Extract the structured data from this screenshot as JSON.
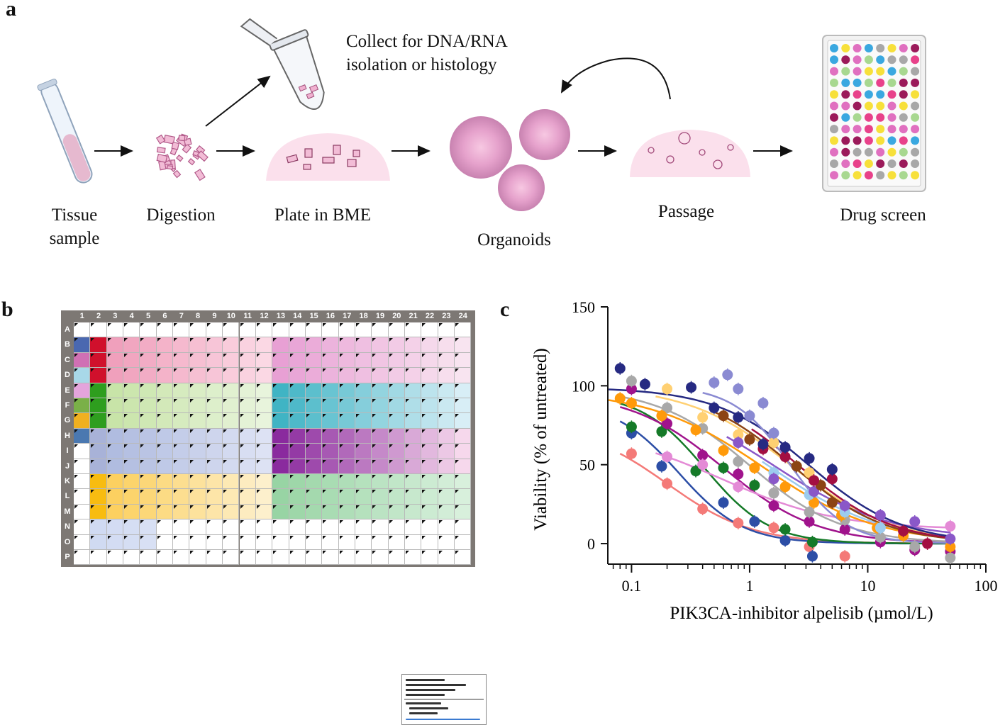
{
  "panels": {
    "a": "a",
    "b": "b",
    "c": "c"
  },
  "workflow": {
    "tissue_sample": "Tissue sample",
    "digestion": "Digestion",
    "plate_in_bme": "Plate in BME",
    "collect": "Collect for DNA/RNA isolation or histology",
    "organoids": "Organoids",
    "passage": "Passage",
    "drug_screen": "Drug screen"
  },
  "plate_layout": {
    "columns": [
      "1",
      "2",
      "3",
      "4",
      "5",
      "6",
      "7",
      "8",
      "9",
      "10",
      "11",
      "12",
      "13",
      "14",
      "15",
      "16",
      "17",
      "18",
      "19",
      "20",
      "21",
      "22",
      "23",
      "24"
    ],
    "rows": [
      "A",
      "B",
      "C",
      "D",
      "E",
      "F",
      "G",
      "H",
      "I",
      "J",
      "K",
      "L",
      "M",
      "N",
      "O",
      "P"
    ],
    "regions": [
      {
        "rows": [
          1,
          1
        ],
        "cols": [
          0,
          0
        ],
        "from": "#4a68b0",
        "to": "#4a68b0"
      },
      {
        "rows": [
          2,
          2
        ],
        "cols": [
          0,
          0
        ],
        "from": "#d070b4",
        "to": "#d070b4"
      },
      {
        "rows": [
          3,
          3
        ],
        "cols": [
          0,
          0
        ],
        "from": "#a8d8e8",
        "to": "#a8d8e8"
      },
      {
        "rows": [
          4,
          4
        ],
        "cols": [
          0,
          0
        ],
        "from": "#e4a4dc",
        "to": "#e4a4dc"
      },
      {
        "rows": [
          5,
          5
        ],
        "cols": [
          0,
          0
        ],
        "from": "#7ab048",
        "to": "#7ab048"
      },
      {
        "rows": [
          6,
          6
        ],
        "cols": [
          0,
          0
        ],
        "from": "#f0b020",
        "to": "#f0b020"
      },
      {
        "rows": [
          7,
          7
        ],
        "cols": [
          0,
          0
        ],
        "from": "#4a78b0",
        "to": "#4a78b0"
      },
      {
        "rows": [
          1,
          3
        ],
        "cols": [
          1,
          1
        ],
        "from": "#d0102c",
        "to": "#d0102c"
      },
      {
        "rows": [
          4,
          6
        ],
        "cols": [
          1,
          1
        ],
        "from": "#2e9e1e",
        "to": "#2e9e1e"
      },
      {
        "rows": [
          7,
          9
        ],
        "cols": [
          1,
          1
        ],
        "from": "#a8b2d8",
        "to": "#a8b2d8"
      },
      {
        "rows": [
          10,
          12
        ],
        "cols": [
          1,
          1
        ],
        "from": "#f8bc10",
        "to": "#f8bc10"
      },
      {
        "rows": [
          1,
          3
        ],
        "cols": [
          2,
          11
        ],
        "from": "#f0a0bc",
        "to": "#fbd8e4"
      },
      {
        "rows": [
          4,
          6
        ],
        "cols": [
          2,
          11
        ],
        "from": "#c8e4a8",
        "to": "#e8f4dc"
      },
      {
        "rows": [
          7,
          9
        ],
        "cols": [
          2,
          11
        ],
        "from": "#b0bce0",
        "to": "#dde2f4"
      },
      {
        "rows": [
          10,
          12
        ],
        "cols": [
          2,
          11
        ],
        "from": "#fcd060",
        "to": "#fdf0cc"
      },
      {
        "rows": [
          1,
          3
        ],
        "cols": [
          12,
          23
        ],
        "from": "#e8a0d4",
        "to": "#f8e4f0"
      },
      {
        "rows": [
          4,
          6
        ],
        "cols": [
          12,
          23
        ],
        "from": "#40b4c4",
        "to": "#d8eef6"
      },
      {
        "rows": [
          7,
          9
        ],
        "cols": [
          12,
          23
        ],
        "from": "#8a2a9e",
        "to": "#f6d8ec"
      },
      {
        "rows": [
          10,
          12
        ],
        "cols": [
          12,
          23
        ],
        "from": "#98d4a4",
        "to": "#d8f0dc"
      },
      {
        "rows": [
          13,
          13
        ],
        "cols": [
          1,
          4
        ],
        "from": "#d0daf2",
        "to": "#d8e0f4"
      },
      {
        "rows": [
          14,
          14
        ],
        "cols": [
          1,
          4
        ],
        "from": "#d0daf2",
        "to": "#d8e0f4"
      }
    ]
  },
  "chart_data": {
    "type": "scatter",
    "title": "",
    "xlabel": "PIK3CA-inhibitor alpelisib (µmol/L)",
    "ylabel": "Viability (% of untreated)",
    "xscale": "log",
    "xlim": [
      0.063,
      100
    ],
    "ylim": [
      -13,
      150
    ],
    "xticks": [
      "0.1",
      "1",
      "10",
      "100"
    ],
    "xtick_values": [
      0.1,
      1,
      10,
      100
    ],
    "yticks": [
      "0",
      "50",
      "100",
      "150"
    ],
    "ytick_values": [
      0,
      50,
      100,
      150
    ],
    "grid": false,
    "series": [
      {
        "name": "salmon",
        "color": "#f47a78",
        "fit": {
          "top": 76,
          "bottom": 0,
          "ic50": 0.2,
          "hill": 1.2
        },
        "x": [
          0.1,
          0.2,
          0.4,
          0.8,
          1.6,
          3.2,
          6.4
        ],
        "y": [
          57,
          38,
          22,
          13,
          10,
          -2,
          -8
        ]
      },
      {
        "name": "blue",
        "color": "#2c4ea6",
        "fit": {
          "top": 90,
          "bottom": 0,
          "ic50": 0.25,
          "hill": 1.6
        },
        "x": [
          0.1,
          0.18,
          0.35,
          0.6,
          1.1,
          2,
          3.4
        ],
        "y": [
          70,
          49,
          46,
          26,
          14,
          2,
          -8
        ]
      },
      {
        "name": "green",
        "color": "#157a28",
        "fit": {
          "top": 95,
          "bottom": 0,
          "ic50": 0.42,
          "hill": 1.6
        },
        "x": [
          0.1,
          0.18,
          0.35,
          0.6,
          1.1,
          2,
          3.4
        ],
        "y": [
          74,
          71,
          46,
          48,
          37,
          9,
          1
        ]
      },
      {
        "name": "magenta",
        "color": "#a0138c",
        "fit": {
          "top": 96,
          "bottom": 0,
          "ic50": 0.6,
          "hill": 1.1
        },
        "x": [
          0.1,
          0.2,
          0.4,
          0.8,
          1.6,
          3.2,
          6.4,
          12.8,
          25,
          50
        ],
        "y": [
          98,
          76,
          56,
          44,
          24,
          14,
          9,
          1,
          -4,
          -5
        ]
      },
      {
        "name": "pink",
        "color": "#e48ad6",
        "fit": {
          "top": 72,
          "bottom": 9,
          "ic50": 0.6,
          "hill": 0.9
        },
        "x": [
          0.2,
          0.4,
          0.8,
          1.6,
          50
        ],
        "y": [
          55,
          50,
          36,
          32,
          11
        ]
      },
      {
        "name": "gray",
        "color": "#a8a8a8",
        "fit": {
          "top": 99,
          "bottom": 0,
          "ic50": 1.0,
          "hill": 1.1
        },
        "x": [
          0.1,
          0.2,
          0.4,
          0.8,
          1.6,
          3.2,
          6.4,
          12.8,
          25,
          50
        ],
        "y": [
          103,
          86,
          73,
          52,
          32,
          20,
          15,
          4,
          -2,
          -9
        ]
      },
      {
        "name": "orange",
        "color": "#ff9a0a",
        "fit": {
          "top": 97,
          "bottom": 0,
          "ic50": 1.3,
          "hill": 0.9
        },
        "x": [
          0.08,
          0.1,
          0.18,
          0.35,
          0.6,
          1.1,
          2,
          3.5,
          6,
          12,
          20,
          50
        ],
        "y": [
          92,
          89,
          81,
          72,
          59,
          48,
          36,
          26,
          18,
          10,
          5,
          -2
        ]
      },
      {
        "name": "lightorange",
        "color": "#ffd072",
        "fit": {
          "top": 100,
          "bottom": 0,
          "ic50": 2.2,
          "hill": 1.0
        },
        "x": [
          0.2,
          0.4,
          0.8,
          1.6,
          3.2
        ],
        "y": [
          98,
          80,
          69,
          64,
          45
        ]
      },
      {
        "name": "lightblue",
        "color": "#9cccee",
        "fit": {
          "top": 97,
          "bottom": 0,
          "ic50": 1.5,
          "hill": 0.9
        },
        "x": [
          1.6,
          3.2,
          6.4,
          12.8
        ],
        "y": [
          45,
          31,
          20,
          10
        ]
      },
      {
        "name": "purple",
        "color": "#8a58c8",
        "fit": {
          "top": 96,
          "bottom": 3,
          "ic50": 1.6,
          "hill": 0.9
        },
        "x": [
          0.8,
          1.6,
          3.5,
          6.4,
          12.8,
          25,
          50
        ],
        "y": [
          64,
          41,
          33,
          24,
          18,
          14,
          3
        ]
      },
      {
        "name": "brown",
        "color": "#8c4414",
        "fit": {
          "top": 99,
          "bottom": 0,
          "ic50": 2.3,
          "hill": 1.1
        },
        "x": [
          0.6,
          1,
          2.5,
          4,
          5
        ],
        "y": [
          81,
          66,
          49,
          37,
          26
        ]
      },
      {
        "name": "crimson",
        "color": "#a30f42",
        "fit": {
          "top": 99,
          "bottom": 0,
          "ic50": 2.6,
          "hill": 1.1
        },
        "x": [
          1.3,
          2,
          3.5,
          5,
          20,
          32
        ],
        "y": [
          60,
          55,
          40,
          41,
          8,
          0
        ]
      },
      {
        "name": "navy",
        "color": "#262a82",
        "fit": {
          "top": 99,
          "bottom": 0,
          "ic50": 3.2,
          "hill": 1.1
        },
        "x": [
          0.08,
          0.13,
          0.32,
          0.5,
          0.8,
          1.3,
          2,
          3.2,
          5
        ],
        "y": [
          111,
          101,
          99,
          86,
          80,
          63,
          61,
          54,
          47
        ]
      },
      {
        "name": "periwinkle",
        "color": "#8a8ad2",
        "fit": {
          "top": 100,
          "bottom": 0,
          "ic50": 2.2,
          "hill": 1.8
        },
        "x": [
          0.5,
          0.65,
          0.8,
          1,
          1.3,
          1.6
        ],
        "y": [
          102,
          107,
          98,
          81,
          89,
          70
        ]
      }
    ]
  }
}
